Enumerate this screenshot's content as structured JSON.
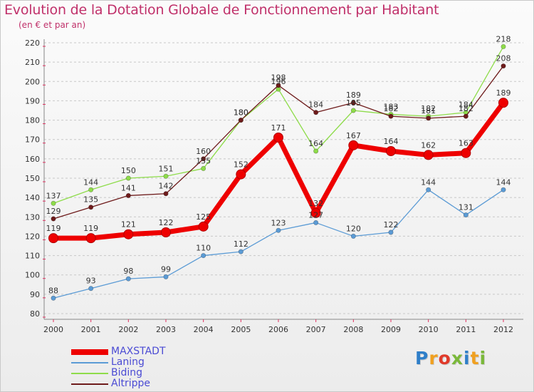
{
  "title": "Evolution de la Dotation Globale de Fonctionnement par Habitant",
  "subtitle": "(en € et par an)",
  "colors": {
    "title": "#c0306a",
    "legend_text": "#4b4bd4",
    "grid": "#c8c8c8",
    "axis_ticks": "#e03060"
  },
  "chart_data": {
    "type": "line",
    "title": "Evolution de la Dotation Globale de Fonctionnement par Habitant",
    "subtitle": "(en € et par an)",
    "xlabel": "",
    "ylabel": "",
    "categories": [
      "2000",
      "2001",
      "2002",
      "2003",
      "2004",
      "2005",
      "2006",
      "2007",
      "2008",
      "2009",
      "2010",
      "2011",
      "2012"
    ],
    "ylim": [
      80,
      220
    ],
    "ytick_step": 10,
    "grid": "horizontal dashed",
    "legend_position": "bottom-left",
    "series": [
      {
        "name": "MAXSTADT",
        "color": "#ee0000",
        "emphasis": "thick",
        "values": [
          119,
          119,
          121,
          122,
          125,
          152,
          171,
          132,
          167,
          164,
          162,
          163,
          189
        ]
      },
      {
        "name": "Laning",
        "color": "#5b9bd5",
        "emphasis": "thin",
        "values": [
          88,
          93,
          98,
          99,
          110,
          112,
          123,
          127,
          120,
          122,
          144,
          131,
          144
        ]
      },
      {
        "name": "Biding",
        "color": "#8edc4a",
        "emphasis": "thin",
        "values": [
          137,
          144,
          150,
          151,
          155,
          180,
          196,
          164,
          185,
          183,
          182,
          184,
          218
        ]
      },
      {
        "name": "Altrippe",
        "color": "#6e1b1b",
        "emphasis": "thin",
        "values": [
          129,
          135,
          141,
          142,
          160,
          180,
          198,
          184,
          189,
          182,
          181,
          182,
          208
        ]
      }
    ]
  },
  "logo": {
    "letters": [
      {
        "ch": "P",
        "color": "#2f7fc9"
      },
      {
        "ch": "r",
        "color": "#f0a020"
      },
      {
        "ch": "o",
        "color": "#e03a2a"
      },
      {
        "ch": "x",
        "color": "#7ab83a"
      },
      {
        "ch": "i",
        "color": "#2f7fc9"
      },
      {
        "ch": "t",
        "color": "#f0a020"
      },
      {
        "ch": "i",
        "color": "#7ab83a"
      }
    ]
  }
}
